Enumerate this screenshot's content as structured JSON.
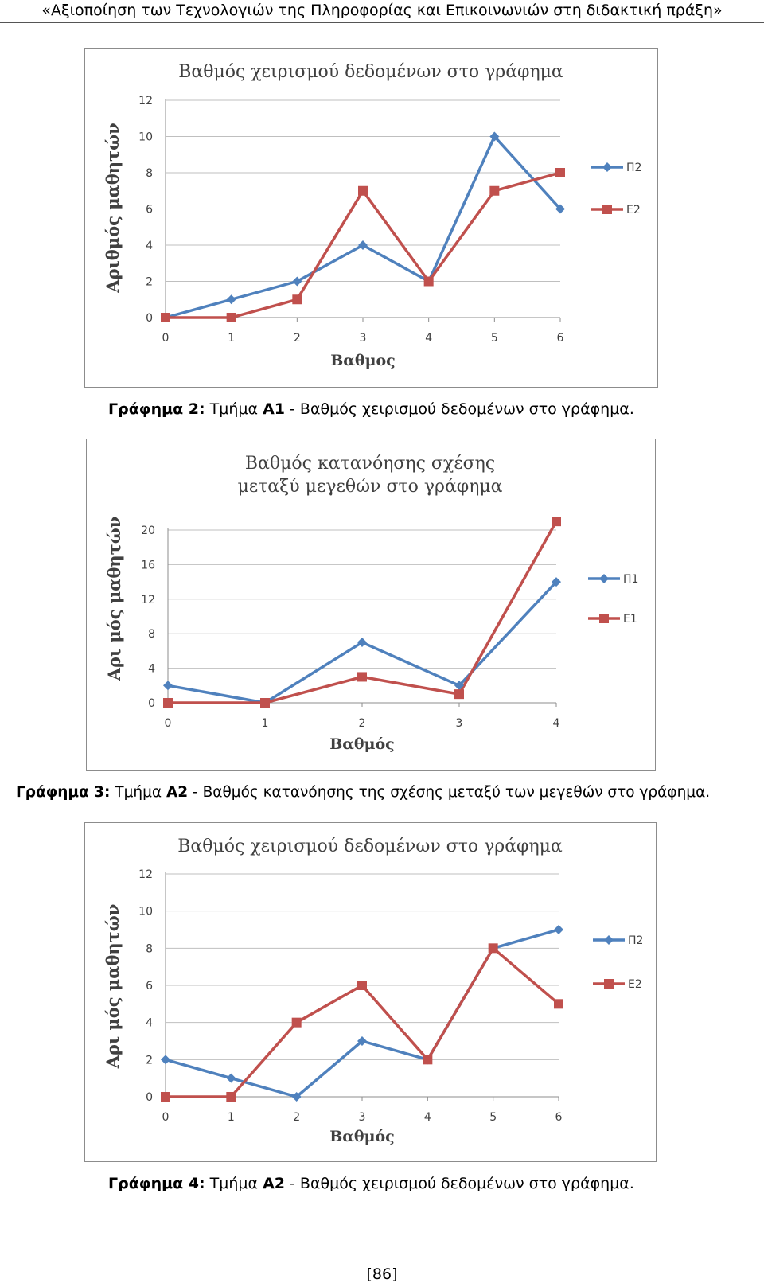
{
  "header": {
    "text": "«Αξιοποίηση των Τεχνολογιών της Πληροφορίας και Επικοινωνιών στη διδακτική πράξη»"
  },
  "chart_data": [
    {
      "type": "line",
      "title": [
        "Βαθμός χειρισμού δεδομένων στο γράφημα"
      ],
      "xlabel": "Βαθμος",
      "ylabel": "Αριθμός μαθητών",
      "x": [
        0,
        1,
        2,
        3,
        4,
        5,
        6
      ],
      "ylim": [
        0,
        12
      ],
      "yticks": [
        0,
        2,
        4,
        6,
        8,
        10,
        12
      ],
      "grid": true,
      "legend": "right",
      "series": [
        {
          "name": "Π2",
          "color": "#4f81bd",
          "marker": "diamond",
          "values": [
            0,
            1,
            2,
            4,
            2,
            10,
            6
          ]
        },
        {
          "name": "Ε2",
          "color": "#c0504d",
          "marker": "square",
          "values": [
            0,
            0,
            1,
            7,
            2,
            7,
            8
          ]
        }
      ]
    },
    {
      "type": "line",
      "title": [
        "Βαθμός κατανόησης σχέσης",
        "μεταξύ μεγεθών στο γράφημα"
      ],
      "xlabel": "Βαθμός",
      "ylabel": "Αρι μός μαθητών",
      "x": [
        0,
        1,
        2,
        3,
        4
      ],
      "ylim": [
        0,
        20
      ],
      "yticks": [
        0,
        4,
        8,
        12,
        16,
        20
      ],
      "grid": true,
      "legend": "right",
      "series": [
        {
          "name": "Π1",
          "color": "#4f81bd",
          "marker": "diamond",
          "values": [
            2,
            0,
            7,
            2,
            14
          ]
        },
        {
          "name": "Ε1",
          "color": "#c0504d",
          "marker": "square",
          "values": [
            0,
            0,
            3,
            1,
            21
          ]
        }
      ]
    },
    {
      "type": "line",
      "title": [
        "Βαθμός χειρισμού δεδομένων στο γράφημα"
      ],
      "xlabel": "Βαθμός",
      "ylabel": "Αρι μός μαθητών",
      "x": [
        0,
        1,
        2,
        3,
        4,
        5,
        6
      ],
      "ylim": [
        0,
        12
      ],
      "yticks": [
        0,
        2,
        4,
        6,
        8,
        10,
        12
      ],
      "grid": true,
      "legend": "right",
      "series": [
        {
          "name": "Π2",
          "color": "#4f81bd",
          "marker": "diamond",
          "values": [
            2,
            1,
            0,
            3,
            2,
            8,
            9
          ]
        },
        {
          "name": "Ε2",
          "color": "#c0504d",
          "marker": "square",
          "values": [
            0,
            0,
            4,
            6,
            2,
            8,
            5
          ]
        }
      ]
    }
  ],
  "captions": [
    {
      "label": "Γράφημα 2:",
      "mid": " Τμήμα ",
      "group": "Α1",
      "rest": " - Βαθμός χειρισμού δεδομένων στο γράφημα."
    },
    {
      "label": "Γράφημα 3:",
      "mid": " Τμήμα ",
      "group": "Α2",
      "rest": " - Βαθμός κατανόησης της σχέσης μεταξύ των μεγεθών στο γράφημα."
    },
    {
      "label": "Γράφημα 4:",
      "mid": " Τμήμα ",
      "group": "Α2",
      "rest": " - Βαθμός χειρισμού δεδομένων στο γράφημα."
    }
  ],
  "footer": {
    "page_number": "[86]"
  }
}
